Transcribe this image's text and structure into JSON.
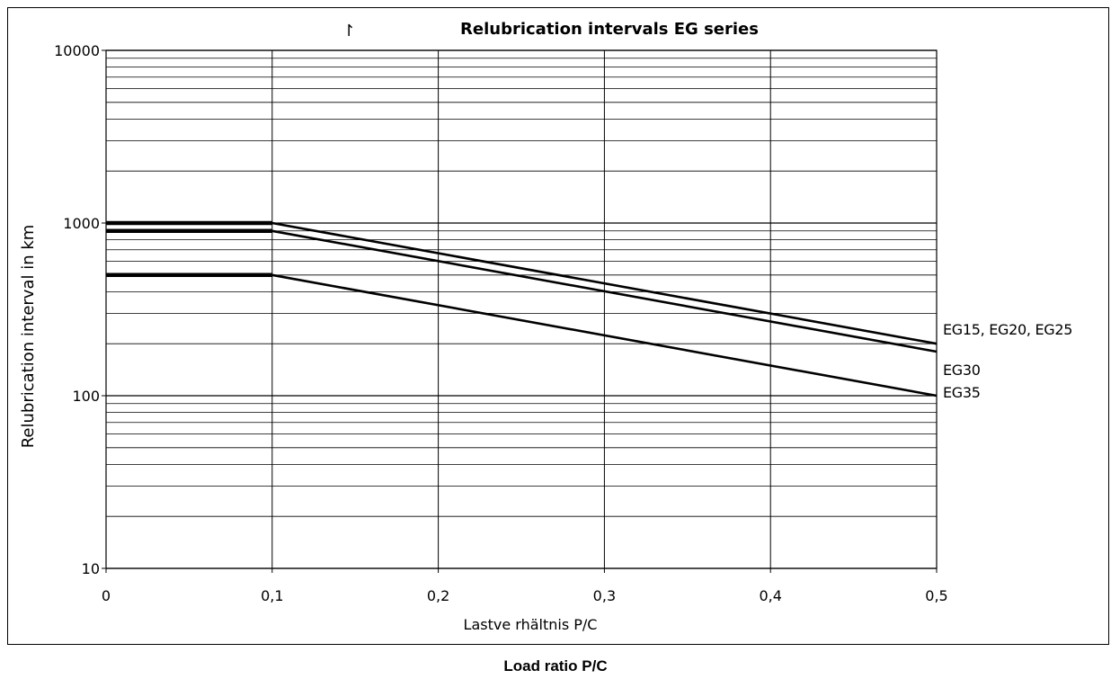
{
  "chart_data": {
    "type": "line",
    "title": "Relubrication intervals EG series",
    "title_marker": "↾",
    "xlabel": "Lastve rhältnis P/C",
    "ylabel": "Relubrication interval in km",
    "x_ticks": [
      "0",
      "0,1",
      "0,2",
      "0,3",
      "0,4",
      "0,5"
    ],
    "y_ticks": [
      "10",
      "100",
      "1000",
      "10000"
    ],
    "xlim": [
      0,
      0.5
    ],
    "ylim": [
      10,
      10000
    ],
    "y_scale": "log",
    "grid": true,
    "series": [
      {
        "name": "EG15, EG20, EG25",
        "x": [
          0,
          0.1,
          0.5
        ],
        "y": [
          1000,
          1000,
          200
        ]
      },
      {
        "name": "EG30",
        "x": [
          0,
          0.1,
          0.5
        ],
        "y": [
          900,
          900,
          180
        ]
      },
      {
        "name": "EG35",
        "x": [
          0,
          0.1,
          0.5
        ],
        "y": [
          500,
          500,
          100
        ]
      }
    ],
    "series_labels": [
      "EG15, EG20, EG25",
      "EG30",
      "EG35"
    ],
    "colors": {
      "line": "#000000",
      "grid": "#000000",
      "background": "#ffffff"
    }
  },
  "page": {
    "outer_xlabel": "Load ratio P/C"
  }
}
